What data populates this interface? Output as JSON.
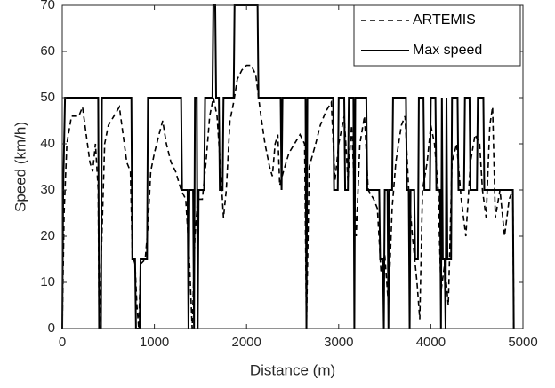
{
  "chart_data": {
    "type": "line",
    "x_label": "Distance (m)",
    "y_label": "Speed (km/h)",
    "xlim": [
      0,
      5000
    ],
    "xticks": [
      0,
      1000,
      2000,
      3000,
      4000,
      5000
    ],
    "ylim": [
      0,
      70
    ],
    "yticks": [
      0,
      10,
      20,
      30,
      40,
      50,
      60,
      70
    ],
    "legend": "upper right",
    "grid": false,
    "series": [
      {
        "name": "ARTEMIS",
        "color": "#000000",
        "dash": true,
        "x": [
          0,
          20,
          50,
          100,
          180,
          220,
          260,
          300,
          330,
          360,
          390,
          400,
          430,
          460,
          500,
          560,
          620,
          660,
          700,
          740,
          760,
          790,
          810,
          830,
          850,
          900,
          930,
          960,
          1000,
          1050,
          1090,
          1130,
          1180,
          1230,
          1290,
          1340,
          1380,
          1410,
          1440,
          1470,
          1520,
          1560,
          1600,
          1640,
          1680,
          1720,
          1750,
          1780,
          1820,
          1860,
          1900,
          1950,
          2000,
          2050,
          2100,
          2150,
          2200,
          2250,
          2280,
          2310,
          2340,
          2360,
          2400,
          2460,
          2520,
          2580,
          2630,
          2650,
          2680,
          2750,
          2800,
          2860,
          2920,
          2960,
          3000,
          3060,
          3100,
          3140,
          3160,
          3190,
          3230,
          3280,
          3320,
          3380,
          3420,
          3460,
          3500,
          3540,
          3580,
          3620,
          3680,
          3720,
          3760,
          3800,
          3850,
          3880,
          3910,
          3960,
          4000,
          4040,
          4080,
          4110,
          4150,
          4190,
          4230,
          4280,
          4330,
          4380,
          4430,
          4480,
          4530,
          4560,
          4600,
          4640,
          4670,
          4700,
          4750,
          4800,
          4850,
          4890,
          4900
        ],
        "values": [
          0,
          25,
          40,
          46,
          46,
          48,
          42,
          36,
          34,
          40,
          30,
          0,
          20,
          40,
          44,
          46,
          48,
          42,
          36,
          34,
          16,
          14,
          5,
          0,
          14,
          15,
          22,
          34,
          38,
          42,
          45,
          40,
          36,
          34,
          30,
          28,
          15,
          0,
          20,
          28,
          28,
          36,
          46,
          50,
          46,
          34,
          24,
          30,
          45,
          49,
          54,
          56,
          57,
          57,
          55,
          47,
          40,
          35,
          33,
          40,
          42,
          31,
          34,
          38,
          40,
          42,
          40,
          0,
          35,
          40,
          44,
          47,
          49,
          32,
          40,
          46,
          32,
          44,
          35,
          20,
          40,
          46,
          30,
          28,
          26,
          12,
          16,
          5,
          26,
          36,
          44,
          46,
          30,
          20,
          10,
          2,
          30,
          36,
          44,
          40,
          30,
          8,
          14,
          5,
          36,
          40,
          28,
          20,
          36,
          42,
          40,
          30,
          24,
          44,
          48,
          24,
          30,
          20,
          28,
          30,
          0
        ]
      },
      {
        "name": "Max speed",
        "color": "#000000",
        "dash": false,
        "x": [
          0,
          10,
          30,
          390,
          400,
          420,
          430,
          750,
          760,
          790,
          800,
          840,
          850,
          920,
          930,
          1290,
          1300,
          1360,
          1370,
          1380,
          1420,
          1430,
          1440,
          1460,
          1470,
          1480,
          1540,
          1550,
          1630,
          1640,
          1660,
          1670,
          1700,
          1710,
          1740,
          1750,
          1860,
          1870,
          2120,
          2130,
          2370,
          2380,
          2390,
          2640,
          2650,
          2660,
          2940,
          2950,
          2990,
          3000,
          3060,
          3070,
          3100,
          3110,
          3160,
          3170,
          3180,
          3300,
          3310,
          3440,
          3450,
          3480,
          3490,
          3500,
          3530,
          3540,
          3550,
          3580,
          3590,
          3730,
          3740,
          3760,
          3770,
          3780,
          3820,
          3830,
          3860,
          3870,
          3920,
          3930,
          3990,
          4000,
          4050,
          4060,
          4100,
          4110,
          4120,
          4130,
          4150,
          4160,
          4170,
          4180,
          4220,
          4230,
          4290,
          4300,
          4360,
          4370,
          4420,
          4430,
          4500,
          4510,
          4570,
          4580,
          4890,
          4900
        ],
        "values": [
          0,
          30,
          50,
          50,
          0,
          0,
          50,
          50,
          15,
          15,
          0,
          0,
          15,
          15,
          50,
          50,
          30,
          30,
          0,
          30,
          30,
          0,
          50,
          50,
          0,
          30,
          30,
          50,
          50,
          70,
          70,
          50,
          50,
          30,
          30,
          50,
          50,
          70,
          70,
          50,
          50,
          30,
          50,
          50,
          0,
          50,
          50,
          30,
          30,
          50,
          50,
          30,
          30,
          50,
          50,
          0,
          50,
          50,
          30,
          30,
          15,
          15,
          0,
          30,
          30,
          0,
          30,
          30,
          50,
          50,
          30,
          30,
          0,
          30,
          30,
          15,
          15,
          50,
          50,
          30,
          30,
          50,
          50,
          30,
          30,
          0,
          50,
          15,
          15,
          0,
          50,
          15,
          15,
          50,
          50,
          30,
          30,
          50,
          50,
          30,
          30,
          50,
          50,
          30,
          30,
          0
        ]
      }
    ]
  }
}
